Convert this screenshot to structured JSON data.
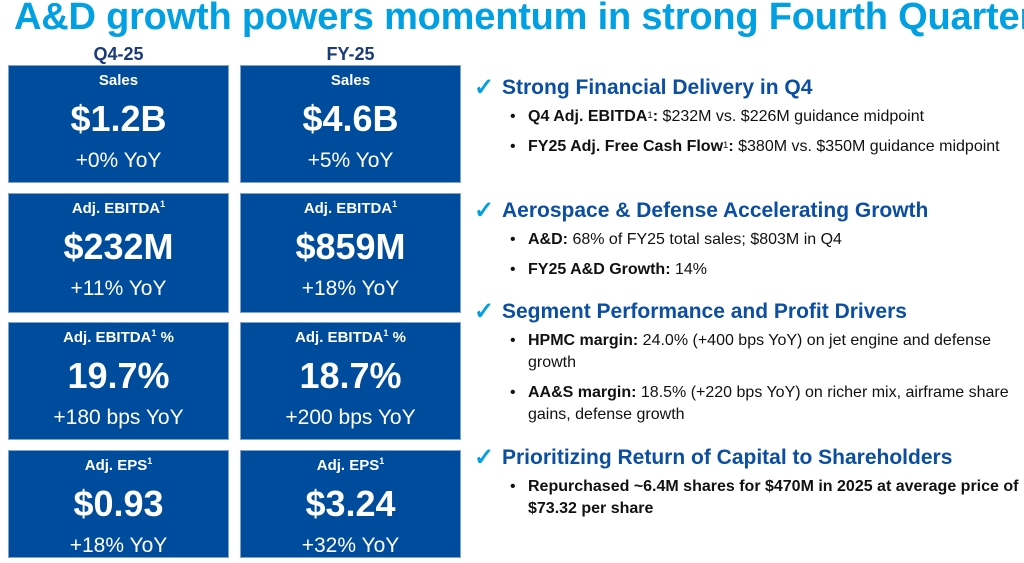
{
  "title": "A&D growth powers momentum in strong Fourth Quarter",
  "columns": [
    "Q4-25",
    "FY-25"
  ],
  "metrics": [
    {
      "label": "Sales",
      "sup": "",
      "suffix": "",
      "q4": {
        "value": "$1.2B",
        "change": "+0% YoY"
      },
      "fy": {
        "value": "$4.6B",
        "change": "+5% YoY"
      }
    },
    {
      "label": "Adj. EBITDA",
      "sup": "1",
      "suffix": "",
      "q4": {
        "value": "$232M",
        "change": "+11% YoY"
      },
      "fy": {
        "value": "$859M",
        "change": "+18% YoY"
      }
    },
    {
      "label": "Adj. EBITDA",
      "sup": "1",
      "suffix": " %",
      "q4": {
        "value": "19.7%",
        "change": "+180 bps YoY"
      },
      "fy": {
        "value": "18.7%",
        "change": "+200 bps YoY"
      }
    },
    {
      "label": "Adj. EPS",
      "sup": "1",
      "suffix": "",
      "q4": {
        "value": "$0.93",
        "change": "+18% YoY"
      },
      "fy": {
        "value": "$3.24",
        "change": "+32% YoY"
      }
    }
  ],
  "sections": [
    {
      "heading": "Strong Financial Delivery in Q4",
      "bullets": [
        {
          "bold": "Q4 Adj. EBITDA",
          "sup": "1",
          "colon": ":",
          "text": " $232M vs. $226M guidance midpoint"
        },
        {
          "bold": "FY25 Adj. Free Cash Flow",
          "sup": "1",
          "colon": ":",
          "text": " $380M vs. $350M guidance midpoint"
        }
      ]
    },
    {
      "heading": "Aerospace & Defense Accelerating Growth",
      "bullets": [
        {
          "bold": "A&D:",
          "sup": "",
          "colon": "",
          "text": " 68% of FY25 total sales; $803M in Q4"
        },
        {
          "bold": "FY25 A&D Growth:",
          "sup": "",
          "colon": "",
          "text": " 14%"
        }
      ]
    },
    {
      "heading": "Segment Performance and Profit Drivers",
      "bullets": [
        {
          "bold": "HPMC margin:",
          "sup": "",
          "colon": "",
          "text": " 24.0% (+400 bps YoY) on jet engine and defense growth"
        },
        {
          "bold": "AA&S margin:",
          "sup": "",
          "colon": "",
          "text": " 18.5% (+220 bps YoY) on richer mix, airframe share gains, defense growth"
        }
      ]
    },
    {
      "heading": "Prioritizing Return of Capital to Shareholders",
      "bullets": [
        {
          "bold": "Repurchased ~6.4M shares for $470M in 2025 at average price of $73.32 per share",
          "sup": "",
          "colon": "",
          "text": ""
        }
      ]
    }
  ],
  "colors": {
    "title": "#00a0e3",
    "box": "#004c9c",
    "heading": "#0b4ea2",
    "check": "#00a0e3"
  }
}
